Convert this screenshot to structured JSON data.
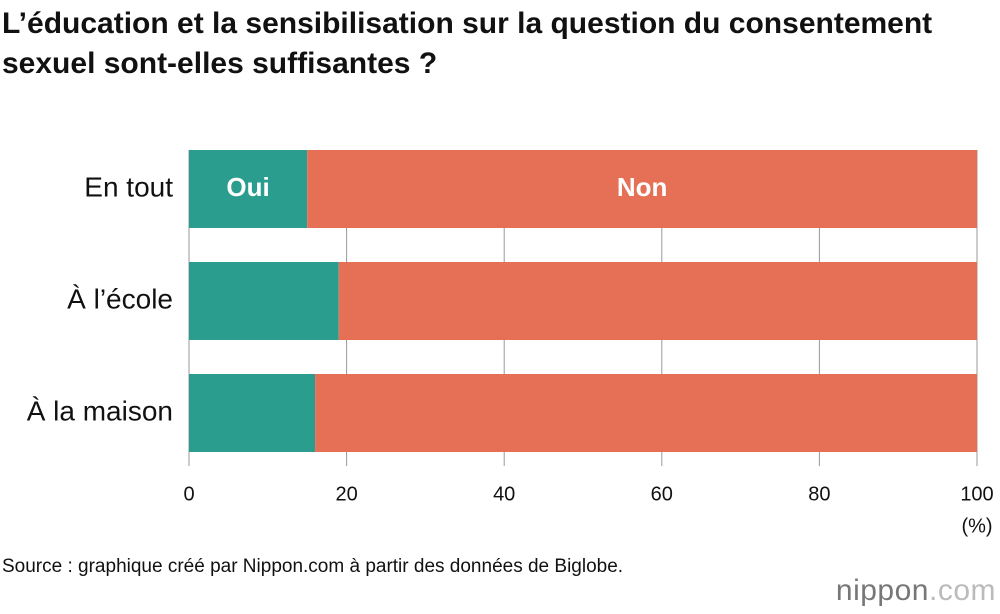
{
  "chart_data": {
    "type": "stacked-bar-horizontal",
    "title": "L’éducation et la sensibilisation sur la question du consentement sexuel sont-elles suffisantes ?",
    "categories": [
      "En tout",
      "À l’école",
      "À la maison"
    ],
    "series": [
      {
        "name": "Oui",
        "color": "#2a9d8f",
        "values": [
          15,
          19,
          16
        ]
      },
      {
        "name": "Non",
        "color": "#e67055",
        "values": [
          85,
          81,
          84
        ]
      }
    ],
    "xlim": [
      0,
      100
    ],
    "xticks": [
      0,
      20,
      40,
      60,
      80,
      100
    ],
    "xlabel": "(%)",
    "grid": true,
    "source": "Source : graphique créé par Nippon.com à partir des données de Biglobe.",
    "brand": {
      "name": "nippon",
      "suffix": ".com"
    }
  }
}
